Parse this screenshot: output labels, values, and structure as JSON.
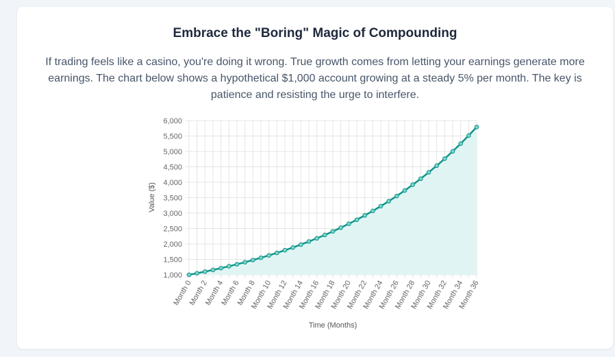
{
  "card": {
    "title": "Embrace the \"Boring\" Magic of Compounding",
    "description": "If trading feels like a casino, you're doing it wrong. True growth comes from letting your earnings generate more earnings. The chart below shows a hypothetical $1,000 account growing at a steady 5% per month. The key is patience and resisting the urge to interfere."
  },
  "chart_data": {
    "type": "line",
    "xlabel": "Time (Months)",
    "ylabel": "Value ($)",
    "ylim": [
      1000,
      6000
    ],
    "y_ticks": [
      "1,000",
      "1,500",
      "2,000",
      "2,500",
      "3,000",
      "3,500",
      "4,000",
      "4,500",
      "5,000",
      "5,500",
      "6,000"
    ],
    "x_tick_labels": [
      "Month 0",
      "Month 2",
      "Month 4",
      "Month 6",
      "Month 8",
      "Month 10",
      "Month 12",
      "Month 14",
      "Month 16",
      "Month 18",
      "Month 20",
      "Month 22",
      "Month 24",
      "Month 26",
      "Month 28",
      "Month 30",
      "Month 32",
      "Month 34",
      "Month 36"
    ],
    "grid": true,
    "fill_area": true,
    "colors": {
      "line": "#0d9488",
      "fill": "#e0f5f3",
      "grid": "#e5e5e5"
    },
    "x": [
      "Month 0",
      "Month 1",
      "Month 2",
      "Month 3",
      "Month 4",
      "Month 5",
      "Month 6",
      "Month 7",
      "Month 8",
      "Month 9",
      "Month 10",
      "Month 11",
      "Month 12",
      "Month 13",
      "Month 14",
      "Month 15",
      "Month 16",
      "Month 17",
      "Month 18",
      "Month 19",
      "Month 20",
      "Month 21",
      "Month 22",
      "Month 23",
      "Month 24",
      "Month 25",
      "Month 26",
      "Month 27",
      "Month 28",
      "Month 29",
      "Month 30",
      "Month 31",
      "Month 32",
      "Month 33",
      "Month 34",
      "Month 35",
      "Month 36"
    ],
    "series": [
      {
        "values": [
          1000.0,
          1050.0,
          1102.5,
          1157.63,
          1215.51,
          1276.28,
          1340.1,
          1407.1,
          1477.46,
          1551.33,
          1628.89,
          1710.34,
          1795.86,
          1885.65,
          1979.93,
          2078.93,
          2182.87,
          2292.02,
          2406.62,
          2526.95,
          2653.3,
          2785.96,
          2925.26,
          3071.52,
          3225.1,
          3386.35,
          3555.67,
          3733.46,
          3920.13,
          4116.14,
          4321.94,
          4538.04,
          4764.94,
          5003.19,
          5253.35,
          5516.02,
          5791.82
        ]
      }
    ]
  }
}
